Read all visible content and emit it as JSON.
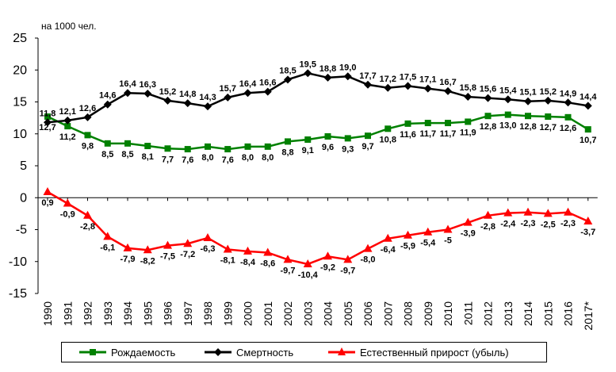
{
  "chart_data": {
    "type": "line",
    "unit_label": "на 1000 чел.",
    "categories": [
      "1990",
      "1991",
      "1992",
      "1993",
      "1994",
      "1995",
      "1996",
      "1997",
      "1998",
      "1999",
      "2000",
      "2001",
      "2002",
      "2003",
      "2004",
      "2005",
      "2006",
      "2007",
      "2008",
      "2009",
      "2010",
      "2011",
      "2012",
      "2013",
      "2014",
      "2015",
      "2016",
      "2017*"
    ],
    "ylim": [
      -15,
      25
    ],
    "yticks": [
      -15,
      -10,
      -5,
      0,
      5,
      10,
      15,
      20,
      25
    ],
    "grid": false,
    "legend_position": "bottom",
    "series": [
      {
        "name": "Рождаемость",
        "color": "#008000",
        "marker": "square",
        "values": [
          12.7,
          11.2,
          9.8,
          8.5,
          8.5,
          8.1,
          7.7,
          7.6,
          8.0,
          7.6,
          8.0,
          8.0,
          8.8,
          9.1,
          9.6,
          9.3,
          9.7,
          10.8,
          11.6,
          11.7,
          11.7,
          11.9,
          12.8,
          13.0,
          12.8,
          12.7,
          12.6,
          10.7
        ],
        "labels": [
          "12,7",
          "11,2",
          "9,8",
          "8,5",
          "8,5",
          "8,1",
          "7,7",
          "7,6",
          "8,0",
          "7,6",
          "8,0",
          "8,0",
          "8,8",
          "9,1",
          "9,6",
          "9,3",
          "9,7",
          "10,8",
          "11,6",
          "11,7",
          "11,7",
          "11,9",
          "12,8",
          "13,0",
          "12,8",
          "12,7",
          "12,6",
          "10,7"
        ]
      },
      {
        "name": "Смертность",
        "color": "#000000",
        "marker": "diamond",
        "values": [
          11.8,
          12.1,
          12.6,
          14.6,
          16.4,
          16.3,
          15.2,
          14.8,
          14.3,
          15.7,
          16.4,
          16.6,
          18.5,
          19.5,
          18.8,
          19.0,
          17.7,
          17.2,
          17.5,
          17.1,
          16.7,
          15.8,
          15.6,
          15.4,
          15.1,
          15.2,
          14.9,
          14.4
        ],
        "labels": [
          "11,8",
          "12,1",
          "12,6",
          "14,6",
          "16,4",
          "16,3",
          "15,2",
          "14,8",
          "14,3",
          "15,7",
          "16,4",
          "16,6",
          "18,5",
          "19,5",
          "18,8",
          "19,0",
          "17,7",
          "17,2",
          "17,5",
          "17,1",
          "16,7",
          "15,8",
          "15,6",
          "15,4",
          "15,1",
          "15,2",
          "14,9",
          "14,4"
        ]
      },
      {
        "name": "Естественный прирост (убыль)",
        "color": "#ff0000",
        "marker": "triangle",
        "values": [
          0.9,
          -0.9,
          -2.8,
          -6.1,
          -7.9,
          -8.2,
          -7.5,
          -7.2,
          -6.3,
          -8.1,
          -8.4,
          -8.6,
          -9.7,
          -10.4,
          -9.2,
          -9.7,
          -8.0,
          -6.4,
          -5.9,
          -5.4,
          -5.0,
          -3.9,
          -2.8,
          -2.4,
          -2.3,
          -2.5,
          -2.3,
          -3.7
        ],
        "labels": [
          "0,9",
          "-0,9",
          "-2,8",
          "-6,1",
          "-7,9",
          "-8,2",
          "-7,5",
          "-7,2",
          "-6,3",
          "-8,1",
          "-8,4",
          "-8,6",
          "-9,7",
          "-10,4",
          "-9,2",
          "-9,7",
          "-8,0",
          "-6,4",
          "-5,9",
          "-5,4",
          "-5",
          "-3,9",
          "-2,8",
          "-2,4",
          "-2,3",
          "-2,5",
          "-2,3",
          "-3,7"
        ]
      }
    ]
  }
}
